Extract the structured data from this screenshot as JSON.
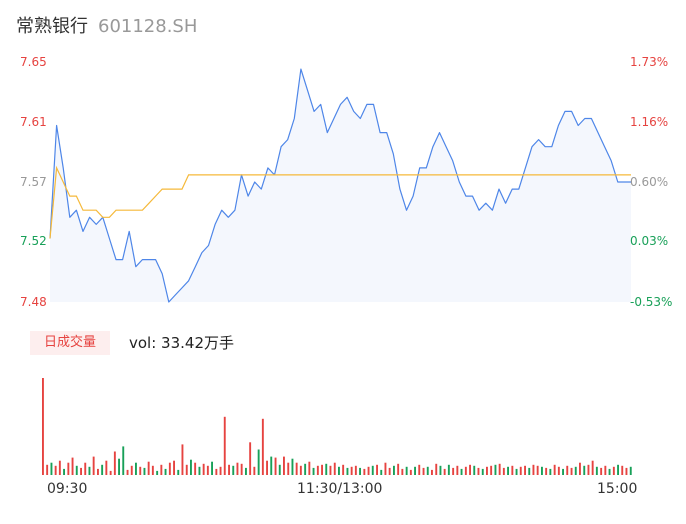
{
  "header": {
    "name": "常熟银行",
    "code": "601128.SH"
  },
  "volume_badge": "日成交量",
  "volume_label": "vol: 33.42万手",
  "colors": {
    "up": "#e64340",
    "down": "#18a058",
    "flat": "#999999",
    "price_line": "#4e86e8",
    "avg_line": "#f5b93a",
    "area_fill": "#f4f7fd"
  },
  "chart_data": [
    {
      "type": "line",
      "ylim": [
        7.48,
        7.65
      ],
      "y_ticks": [
        "7.65",
        "7.61",
        "7.57",
        "7.52",
        "7.48"
      ],
      "y_ticks_right": [
        "1.73%",
        "1.16%",
        "0.60%",
        "0.03%",
        "-0.53%"
      ],
      "x_ticks": [
        "09:30",
        "11:30/13:00",
        "15:00"
      ],
      "series": [
        {
          "name": "",
          "values": [
            7.525,
            7.605,
            7.575,
            7.54,
            7.545,
            7.53,
            7.54,
            7.535,
            7.54,
            7.525,
            7.51,
            7.51,
            7.53,
            7.505,
            7.51,
            7.51,
            7.51,
            7.5,
            7.48,
            7.485,
            7.49,
            7.495,
            7.505,
            7.515,
            7.52,
            7.535,
            7.545,
            7.54,
            7.545,
            7.57,
            7.555,
            7.565,
            7.56,
            7.575,
            7.57,
            7.59,
            7.595,
            7.61,
            7.645,
            7.63,
            7.615,
            7.62,
            7.6,
            7.61,
            7.62,
            7.625,
            7.615,
            7.61,
            7.62,
            7.62,
            7.6,
            7.6,
            7.585,
            7.56,
            7.545,
            7.555,
            7.575,
            7.575,
            7.59,
            7.6,
            7.59,
            7.58,
            7.565,
            7.555,
            7.555,
            7.545,
            7.55,
            7.545,
            7.56,
            7.55,
            7.56,
            7.56,
            7.575,
            7.59,
            7.595,
            7.59,
            7.59,
            7.605,
            7.615,
            7.615,
            7.605,
            7.61,
            7.61,
            7.6,
            7.59,
            7.58,
            7.565,
            7.565,
            7.565
          ],
          "markers": "none"
        },
        {
          "name": "",
          "values": [
            7.525,
            7.575,
            7.565,
            7.555,
            7.555,
            7.545,
            7.545,
            7.545,
            7.54,
            7.54,
            7.545,
            7.545,
            7.545,
            7.545,
            7.545,
            7.55,
            7.555,
            7.56,
            7.56,
            7.56,
            7.56,
            7.57,
            7.57,
            7.57,
            7.57,
            7.57,
            7.57,
            7.57,
            7.57,
            7.57,
            7.57,
            7.57,
            7.57,
            7.57,
            7.57,
            7.57,
            7.57,
            7.57,
            7.57,
            7.57,
            7.57,
            7.57,
            7.57,
            7.57,
            7.57,
            7.57,
            7.57,
            7.57,
            7.57,
            7.57,
            7.57,
            7.57,
            7.57,
            7.57,
            7.57,
            7.57,
            7.57,
            7.57,
            7.57,
            7.57,
            7.57,
            7.57,
            7.57,
            7.57,
            7.57,
            7.57,
            7.57,
            7.57,
            7.57,
            7.57,
            7.57,
            7.57,
            7.57,
            7.57,
            7.57,
            7.57,
            7.57,
            7.57,
            7.57,
            7.57,
            7.57,
            7.57,
            7.57,
            7.57,
            7.57,
            7.57,
            7.57,
            7.57,
            7.57
          ],
          "markers": "none"
        }
      ],
      "grid": false
    },
    {
      "type": "bar",
      "values": [
        95,
        10,
        12,
        9,
        14,
        6,
        12,
        17,
        9,
        7,
        12,
        8,
        18,
        6,
        10,
        14,
        4,
        23,
        16,
        28,
        5,
        9,
        12,
        8,
        7,
        13,
        9,
        4,
        10,
        6,
        12,
        14,
        5,
        30,
        10,
        15,
        12,
        8,
        11,
        9,
        13,
        6,
        8,
        57,
        10,
        9,
        12,
        11,
        7,
        32,
        8,
        25,
        55,
        14,
        18,
        17,
        10,
        18,
        12,
        16,
        12,
        9,
        11,
        13,
        7,
        9,
        10,
        11,
        9,
        12,
        8,
        10,
        7,
        8,
        9,
        7,
        6,
        8,
        9,
        10,
        5,
        12,
        7,
        9,
        11,
        6,
        8,
        5,
        8,
        10,
        7,
        8,
        5,
        11,
        9,
        6,
        10,
        7,
        9,
        6,
        8,
        10,
        9,
        7,
        6,
        8,
        9,
        10,
        11,
        7,
        8,
        9,
        6,
        8,
        9,
        7,
        10,
        9,
        8,
        7,
        6,
        10,
        8,
        6,
        9,
        7,
        8,
        12,
        9,
        10,
        14,
        8,
        7,
        9,
        6,
        8,
        10,
        9,
        7,
        8
      ],
      "up_flags": [
        1,
        1,
        0,
        1,
        1,
        0,
        1,
        1,
        0,
        1,
        1,
        0,
        1,
        1,
        0,
        1,
        1,
        1,
        0,
        0,
        1,
        1,
        0,
        1,
        0,
        1,
        1,
        0,
        1,
        0,
        1,
        1,
        0,
        1,
        1,
        0,
        1,
        0,
        1,
        1,
        0,
        1,
        1,
        1,
        1,
        0,
        1,
        1,
        0,
        1,
        1,
        0,
        1,
        1,
        0,
        1,
        0,
        1,
        1,
        0,
        1,
        1,
        0,
        1,
        0,
        1,
        1,
        0,
        1,
        1,
        0,
        1,
        0,
        1,
        1,
        0,
        1,
        1,
        0,
        1,
        0,
        1,
        1,
        0,
        1,
        1,
        0,
        1,
        0,
        1,
        1,
        0,
        1,
        1,
        0,
        1,
        0,
        1,
        1,
        0,
        1,
        1,
        0,
        1,
        0,
        1,
        1,
        0,
        1,
        1,
        0,
        1,
        0,
        1,
        1,
        0,
        1,
        1,
        0,
        1,
        0,
        1,
        1,
        0,
        1,
        1,
        0,
        1,
        0,
        1,
        1,
        0,
        1,
        1,
        0,
        1,
        0,
        1,
        1,
        0
      ]
    }
  ]
}
